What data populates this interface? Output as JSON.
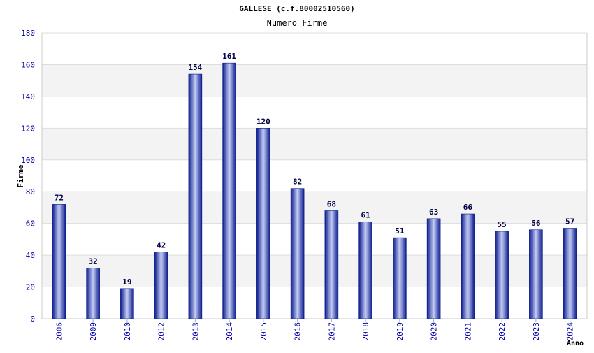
{
  "chart_data": {
    "type": "bar",
    "title": "GALLESE (c.f.80002510560)",
    "subtitle": "Numero Firme",
    "xlabel": "Anno",
    "ylabel": "Firme",
    "categories": [
      "2006",
      "2009",
      "2010",
      "2012",
      "2013",
      "2014",
      "2015",
      "2016",
      "2017",
      "2018",
      "2019",
      "2020",
      "2021",
      "2022",
      "2023",
      "2024"
    ],
    "values": [
      72,
      32,
      19,
      42,
      154,
      161,
      120,
      82,
      68,
      61,
      51,
      63,
      66,
      55,
      56,
      57
    ],
    "ylim": [
      0,
      180
    ],
    "yticks": [
      "0",
      "20",
      "40",
      "60",
      "80",
      "100",
      "120",
      "140",
      "160",
      "180"
    ],
    "grid": true,
    "bar_color": "#2a36a0",
    "band_color": "#f3f3f3"
  }
}
